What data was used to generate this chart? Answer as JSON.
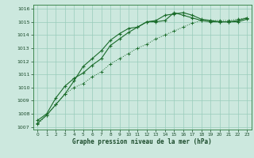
{
  "title": "Graphe pression niveau de la mer (hPa)",
  "bg_color": "#cce8de",
  "grid_color": "#99ccbb",
  "line_color": "#1a6b2a",
  "xlim": [
    -0.5,
    23.5
  ],
  "ylim": [
    1006.8,
    1016.3
  ],
  "yticks": [
    1007,
    1008,
    1009,
    1010,
    1011,
    1012,
    1013,
    1014,
    1015,
    1016
  ],
  "xticks": [
    0,
    1,
    2,
    3,
    4,
    5,
    6,
    7,
    8,
    9,
    10,
    11,
    12,
    13,
    14,
    15,
    16,
    17,
    18,
    19,
    20,
    21,
    22,
    23
  ],
  "line1_x": [
    0,
    1,
    2,
    3,
    4,
    5,
    6,
    7,
    8,
    9,
    10,
    11,
    12,
    13,
    14,
    15,
    16,
    17,
    18,
    19,
    20,
    21,
    22,
    23
  ],
  "line1_y": [
    1007.2,
    1007.9,
    1008.7,
    1009.5,
    1010.0,
    1010.3,
    1010.8,
    1011.2,
    1011.8,
    1012.2,
    1012.6,
    1013.0,
    1013.3,
    1013.7,
    1014.0,
    1014.3,
    1014.6,
    1014.9,
    1015.1,
    1015.1,
    1015.1,
    1015.1,
    1015.2,
    1015.3
  ],
  "line2_x": [
    0,
    1,
    2,
    3,
    4,
    5,
    6,
    7,
    8,
    9,
    10,
    11,
    12,
    13,
    14,
    15,
    16,
    17,
    18,
    19,
    20,
    21,
    22,
    23
  ],
  "line2_y": [
    1007.5,
    1008.0,
    1009.2,
    1010.1,
    1010.7,
    1011.1,
    1011.7,
    1012.2,
    1013.2,
    1013.7,
    1014.2,
    1014.6,
    1015.0,
    1015.1,
    1015.5,
    1015.6,
    1015.7,
    1015.5,
    1015.2,
    1015.1,
    1015.0,
    1015.0,
    1015.0,
    1015.2
  ],
  "line3_x": [
    0,
    1,
    2,
    3,
    4,
    5,
    6,
    7,
    8,
    9,
    10,
    11,
    12,
    13,
    14,
    15,
    16,
    17,
    18,
    19,
    20,
    21,
    22,
    23
  ],
  "line3_y": [
    1007.3,
    1007.9,
    1008.7,
    1009.5,
    1010.5,
    1011.6,
    1012.2,
    1012.8,
    1013.6,
    1014.1,
    1014.5,
    1014.6,
    1015.0,
    1015.0,
    1015.1,
    1015.7,
    1015.5,
    1015.3,
    1015.1,
    1015.0,
    1015.0,
    1015.0,
    1015.1,
    1015.3
  ]
}
